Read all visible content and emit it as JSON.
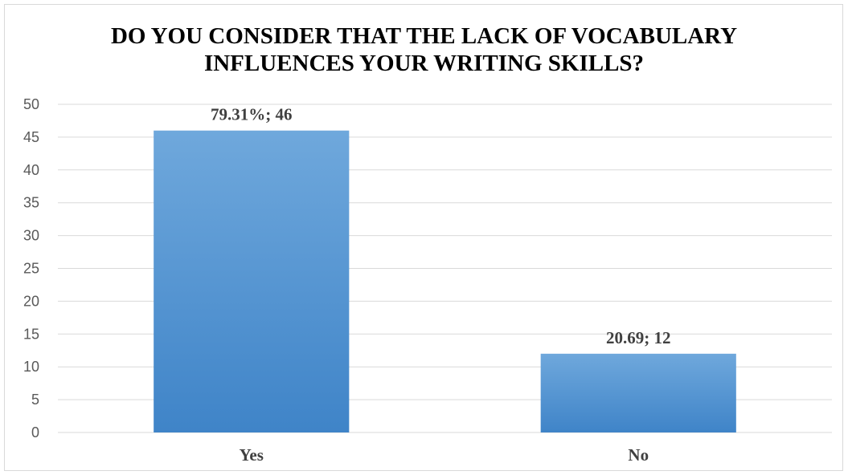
{
  "chart_data": {
    "type": "bar",
    "title": [
      "DO YOU CONSIDER THAT THE LACK OF VOCABULARY",
      "INFLUENCES YOUR WRITING SKILLS?"
    ],
    "categories": [
      "Yes",
      "No"
    ],
    "values": [
      46,
      12
    ],
    "data_labels": [
      "79.31%; 46",
      "20.69; 12"
    ],
    "ylim": [
      0,
      50
    ],
    "yticks": [
      0,
      5,
      10,
      15,
      20,
      25,
      30,
      35,
      40,
      45,
      50
    ],
    "grid": true,
    "legend": "none",
    "colors": {
      "bar_top": "#6fa8dc",
      "bar_bottom": "#3f84c8",
      "grid": "#d9d9d9",
      "label": "#404040",
      "tick": "#595959"
    }
  }
}
